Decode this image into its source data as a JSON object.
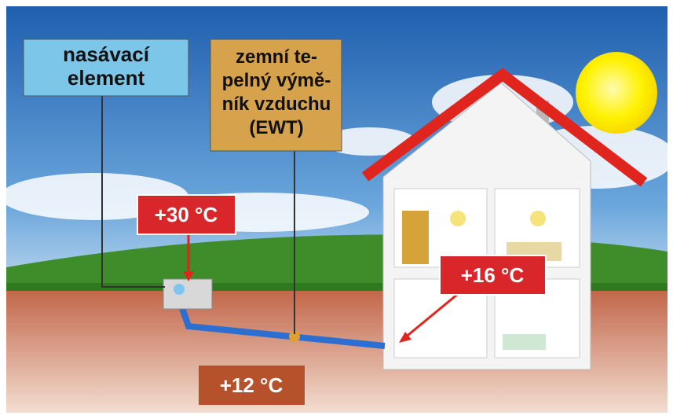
{
  "labels": {
    "intake": {
      "lines": [
        "nasávací",
        "element"
      ]
    },
    "exchanger": {
      "lines": [
        "zemní te-",
        "pelný výmě-",
        "ník vzduchu",
        "(EWT)"
      ]
    },
    "outdoor_temp": "+30 °C",
    "indoor_temp": "+16 °C",
    "ground_temp": "+12 °C"
  }
}
